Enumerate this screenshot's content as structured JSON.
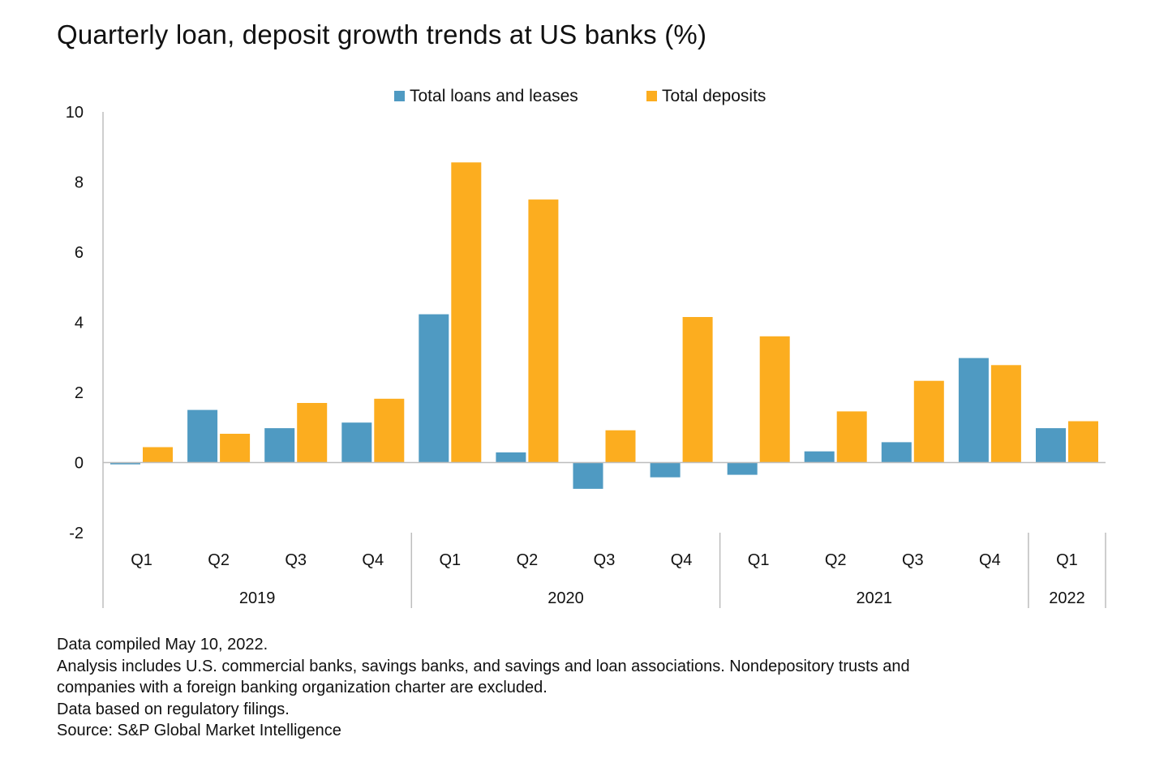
{
  "chart_data": {
    "type": "bar",
    "title": "Quarterly loan, deposit growth trends at US banks (%)",
    "xlabel": "",
    "ylabel": "",
    "ylim": [
      -2,
      10
    ],
    "yticks": [
      10,
      8,
      6,
      4,
      2,
      0,
      -2
    ],
    "grid": false,
    "legend_position": "top-center",
    "categories": [
      "Q1",
      "Q2",
      "Q3",
      "Q4",
      "Q1",
      "Q2",
      "Q3",
      "Q4",
      "Q1",
      "Q2",
      "Q3",
      "Q4",
      "Q1"
    ],
    "groups": [
      {
        "label": "2019",
        "count": 4
      },
      {
        "label": "2020",
        "count": 4
      },
      {
        "label": "2021",
        "count": 4
      },
      {
        "label": "2022",
        "count": 1
      }
    ],
    "series": [
      {
        "name": "Total loans and leases",
        "color": "#4f9ac2",
        "values": [
          -0.05,
          1.5,
          0.98,
          1.14,
          4.23,
          0.29,
          -0.75,
          -0.42,
          -0.35,
          0.32,
          0.58,
          2.98,
          0.98
        ]
      },
      {
        "name": "Total deposits",
        "color": "#fcad1f",
        "values": [
          0.44,
          0.82,
          1.7,
          1.82,
          8.56,
          7.5,
          0.92,
          4.15,
          3.6,
          1.46,
          2.33,
          2.78,
          1.18
        ]
      }
    ]
  },
  "notes": {
    "compiled": "Data compiled May 10, 2022.",
    "analysis_line1": "Analysis includes U.S. commercial banks, savings banks, and savings and loan associations. Nondepository trusts and",
    "analysis_line2": "companies with a foreign banking organization charter are excluded.",
    "filings": "Data based on regulatory filings.",
    "source": "Source: S&P Global Market Intelligence"
  }
}
